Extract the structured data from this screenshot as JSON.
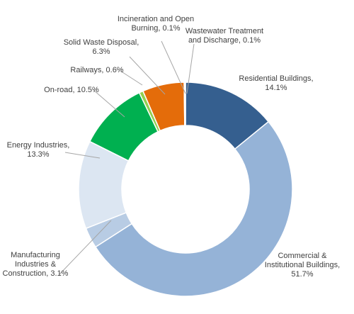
{
  "chart_data": {
    "type": "pie",
    "variant": "donut",
    "title": "",
    "legend": "none",
    "slices": [
      {
        "name": "Residential Buildings",
        "value": 14.1,
        "color": "#355f8f",
        "label_lines": [
          "Residential Buildings,",
          "14.1%"
        ]
      },
      {
        "name": "Commercial & Institutional Buildings",
        "value": 51.7,
        "color": "#95b3d7",
        "label_lines": [
          "Commercial &",
          "Institutional Buildings,",
          "51.7%"
        ]
      },
      {
        "name": "Manufacturing Industries & Construction",
        "value": 3.1,
        "color": "#b8cce4",
        "label_lines": [
          "Manufacturing",
          "Industries &",
          "Construction, 3.1%"
        ]
      },
      {
        "name": "Energy Industries",
        "value": 13.3,
        "color": "#dce6f2",
        "label_lines": [
          "Energy Industries,",
          "13.3%"
        ]
      },
      {
        "name": "On-road",
        "value": 10.5,
        "color": "#00b050",
        "label_lines": [
          "On-road, 10.5%"
        ]
      },
      {
        "name": "Railways",
        "value": 0.6,
        "color": "#92d050",
        "label_lines": [
          "Railways, 0.6%"
        ]
      },
      {
        "name": "Solid Waste Disposal",
        "value": 6.3,
        "color": "#e46c0a",
        "label_lines": [
          "Solid Waste Disposal,",
          "6.3%"
        ]
      },
      {
        "name": "Incineration and Open Burning",
        "value": 0.1,
        "color": "#c0c0c0",
        "label_lines": [
          "Incineration and Open",
          "Burning, 0.1%"
        ]
      },
      {
        "name": "Wastewater Treatment and Discharge",
        "value": 0.1,
        "color": "#808080",
        "label_lines": [
          "Wastewater Treatment",
          "and Discharge, 0.1%"
        ]
      }
    ]
  }
}
